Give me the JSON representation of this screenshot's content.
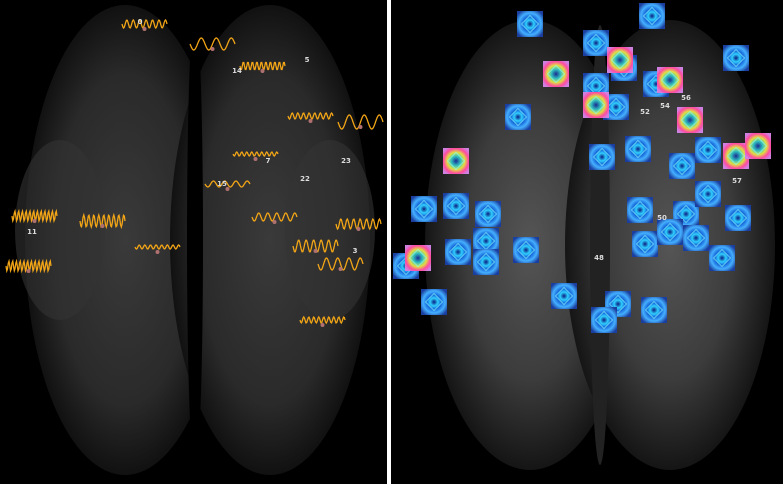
{
  "left_panel": {
    "labels": [
      "0",
      "14",
      "5",
      "7",
      "23",
      "22",
      "15",
      "11",
      "3"
    ]
  },
  "right_panel": {
    "labels": [
      "52",
      "54",
      "56",
      "57",
      "48",
      "50"
    ]
  }
}
